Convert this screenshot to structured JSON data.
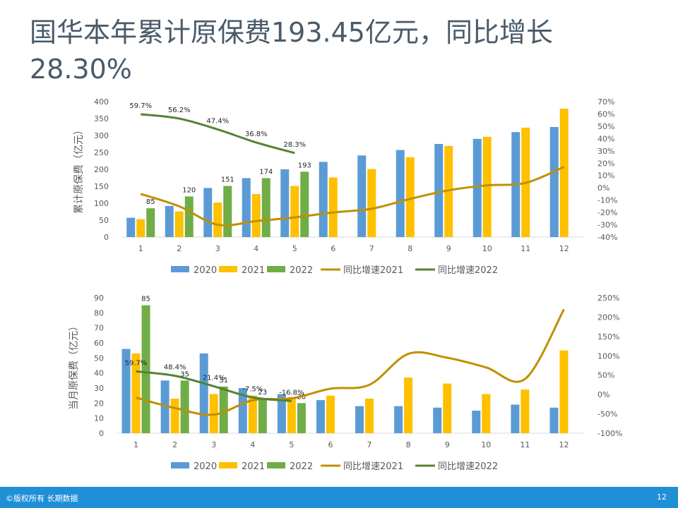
{
  "title": "国华本年累计原保费193.45亿元，同比增长28.30%",
  "footer": {
    "copyright": "©版权所有 长期数据",
    "page": "12"
  },
  "colors": {
    "s2020": "#5b9bd5",
    "s2021": "#ffc000",
    "s2022": "#70ad47",
    "g2021": "#bf9000",
    "g2022": "#548235"
  },
  "chart_data": [
    {
      "type": "bar",
      "ylabel": "累计原保费（亿元）",
      "categories": [
        "1",
        "2",
        "3",
        "4",
        "5",
        "6",
        "7",
        "8",
        "9",
        "10",
        "11",
        "12"
      ],
      "ylim": [
        0,
        400
      ],
      "yticks": [
        "0",
        "50",
        "100",
        "150",
        "200",
        "250",
        "300",
        "350",
        "400"
      ],
      "y2lim": [
        -40,
        70
      ],
      "y2ticks": [
        "-40%",
        "-30%",
        "-20%",
        "-10%",
        "0%",
        "10%",
        "20%",
        "30%",
        "40%",
        "50%",
        "60%",
        "70%"
      ],
      "series": [
        {
          "name": "2020",
          "kind": "bar",
          "values": [
            57,
            92,
            145,
            174,
            200,
            222,
            241,
            257,
            275,
            290,
            310,
            325
          ]
        },
        {
          "name": "2021",
          "kind": "bar",
          "values": [
            53,
            76,
            102,
            127,
            151,
            176,
            201,
            236,
            269,
            296,
            323,
            379
          ]
        },
        {
          "name": "2022",
          "kind": "bar",
          "values": [
            85,
            120,
            151,
            174,
            193,
            null,
            null,
            null,
            null,
            null,
            null,
            null
          ],
          "labels": [
            "85",
            "120",
            "151",
            "174",
            "193"
          ]
        },
        {
          "name": "同比增速2021",
          "kind": "line",
          "axis": "right",
          "values": [
            -5,
            -15,
            -30,
            -27,
            -24,
            -20,
            -17,
            -9,
            -2,
            2,
            4,
            17
          ]
        },
        {
          "name": "同比增速2022",
          "kind": "line",
          "axis": "right",
          "values": [
            59.7,
            56.2,
            47.4,
            36.8,
            28.3,
            null,
            null,
            null,
            null,
            null,
            null,
            null
          ],
          "labels": [
            "59.7%",
            "56.2%",
            "47.4%",
            "36.8%",
            "28.3%"
          ]
        }
      ]
    },
    {
      "type": "bar",
      "ylabel": "当月原保费（亿元）",
      "categories": [
        "1",
        "2",
        "3",
        "4",
        "5",
        "6",
        "7",
        "8",
        "9",
        "10",
        "11",
        "12"
      ],
      "ylim": [
        0,
        90
      ],
      "yticks": [
        "0",
        "10",
        "20",
        "30",
        "40",
        "50",
        "60",
        "70",
        "80",
        "90"
      ],
      "y2lim": [
        -100,
        250
      ],
      "y2ticks": [
        "-100%",
        "-50%",
        "0%",
        "50%",
        "100%",
        "150%",
        "200%",
        "250%"
      ],
      "series": [
        {
          "name": "2020",
          "kind": "bar",
          "values": [
            56,
            35,
            53,
            30,
            26,
            22,
            18,
            18,
            17,
            15,
            19,
            17
          ]
        },
        {
          "name": "2021",
          "kind": "bar",
          "values": [
            53,
            23,
            26,
            25,
            24,
            25,
            23,
            37,
            33,
            26,
            29,
            55
          ]
        },
        {
          "name": "2022",
          "kind": "bar",
          "values": [
            85,
            35,
            31,
            23,
            20,
            null,
            null,
            null,
            null,
            null,
            null,
            null
          ],
          "labels": [
            "85",
            "35",
            "31",
            "23",
            "20"
          ]
        },
        {
          "name": "同比增速2021",
          "kind": "line",
          "axis": "right",
          "values": [
            -8,
            -35,
            -52,
            -15,
            -10,
            15,
            25,
            105,
            95,
            70,
            40,
            220
          ]
        },
        {
          "name": "同比增速2022",
          "kind": "line",
          "axis": "right",
          "values": [
            59.7,
            48.4,
            21.4,
            -7.5,
            -16.8,
            null,
            null,
            null,
            null,
            null,
            null,
            null
          ],
          "labels": [
            "59.7%",
            "48.4%",
            "21.4%",
            "-7.5%",
            "-16.8%"
          ]
        }
      ]
    }
  ]
}
